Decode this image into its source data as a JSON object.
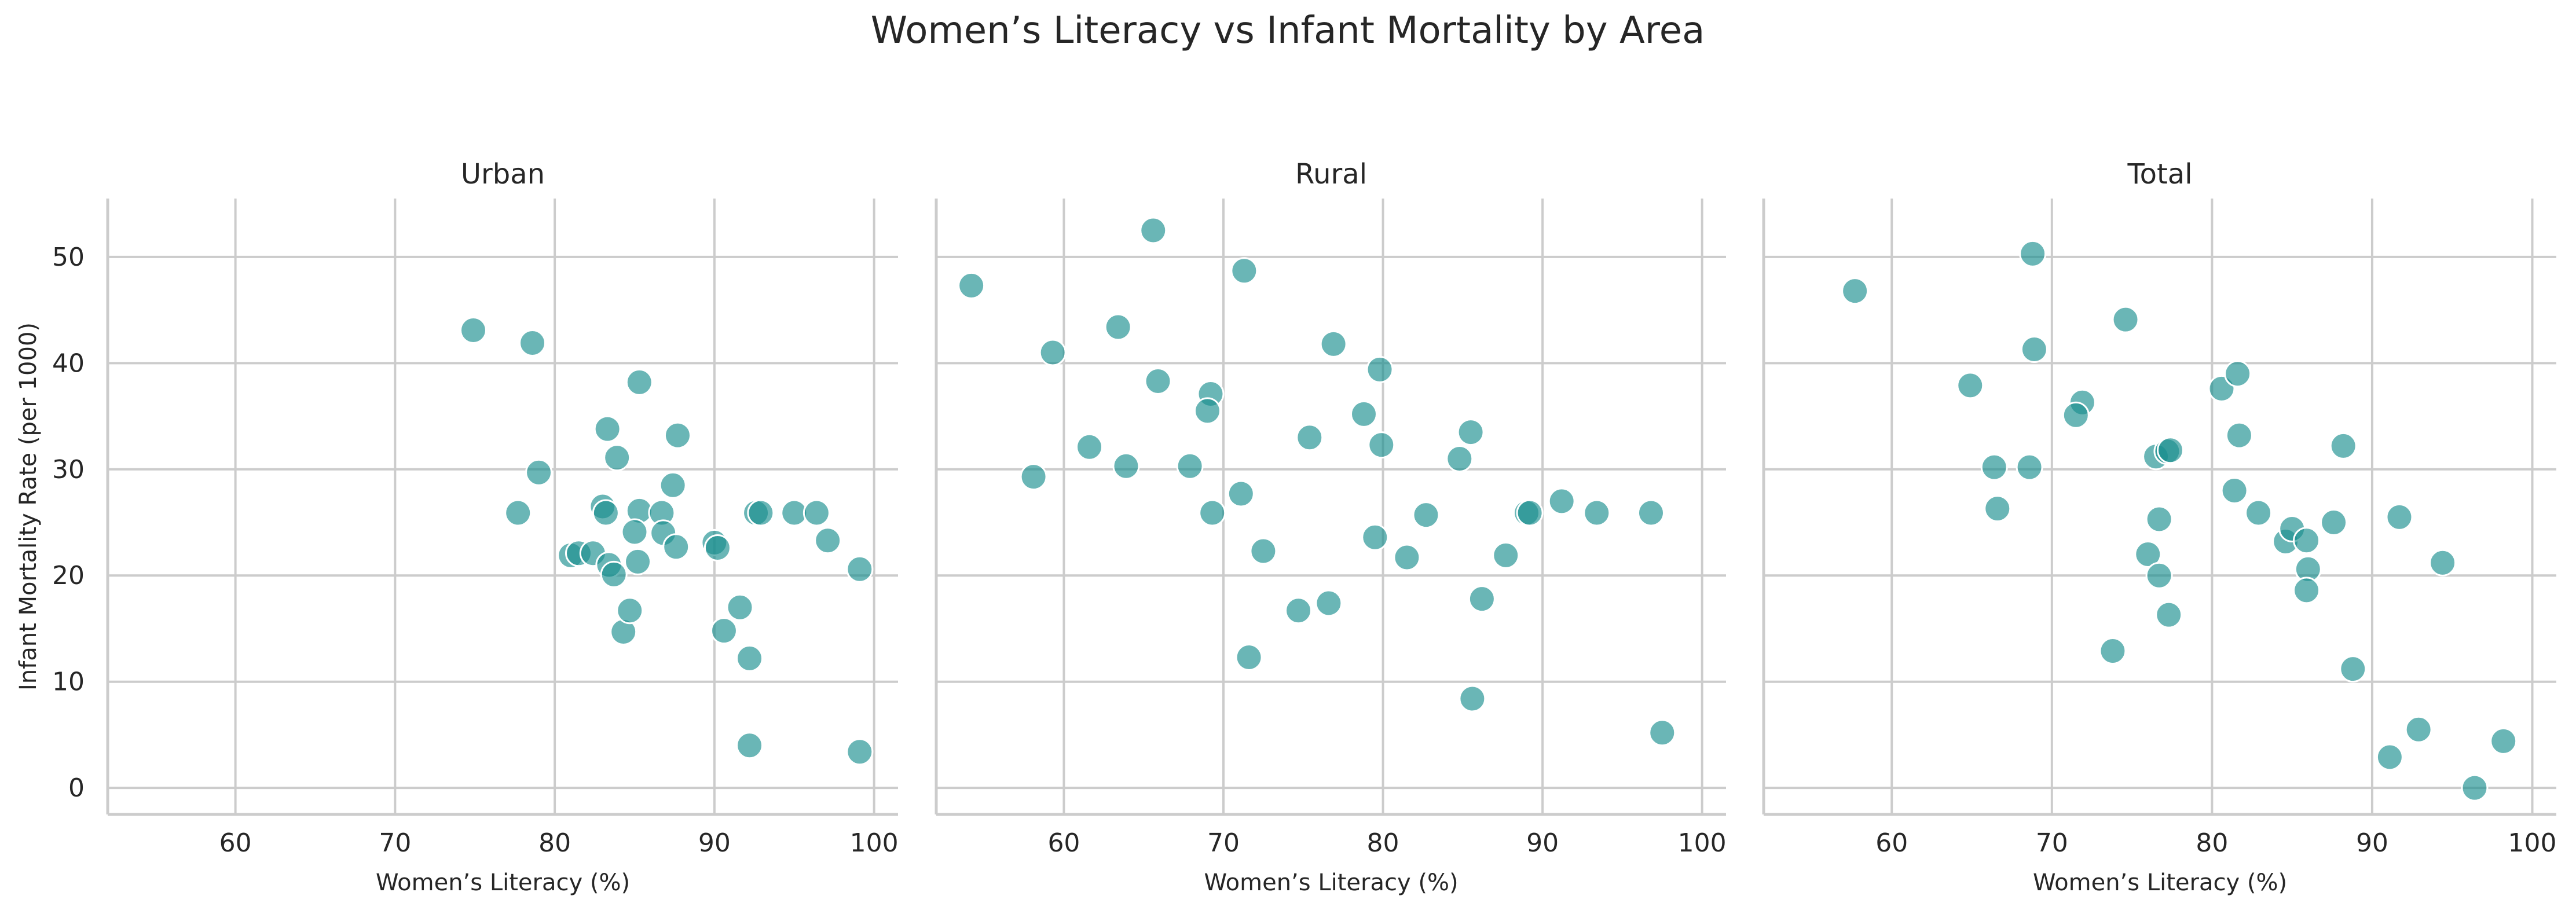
{
  "figure": {
    "title": "Women’s Literacy vs Infant Mortality by Area",
    "point_color": "#1a8f8f",
    "point_opacity": 0.65
  },
  "chart_data": [
    {
      "type": "scatter",
      "title": "Urban",
      "xlabel": "Women’s Literacy (%)",
      "ylabel": "Infant Mortality Rate (per 1000)",
      "xlim": [
        52,
        101.5
      ],
      "ylim": [
        -2.5,
        55.5
      ],
      "xticks": [
        60,
        70,
        80,
        90,
        100
      ],
      "yticks": [
        0,
        10,
        20,
        30,
        40,
        50
      ],
      "grid": true,
      "points": [
        {
          "x": 74.9,
          "y": 43.1
        },
        {
          "x": 78.6,
          "y": 41.9
        },
        {
          "x": 79.0,
          "y": 29.7
        },
        {
          "x": 77.7,
          "y": 25.9
        },
        {
          "x": 85.3,
          "y": 38.2
        },
        {
          "x": 83.3,
          "y": 33.8
        },
        {
          "x": 83.9,
          "y": 31.1
        },
        {
          "x": 87.7,
          "y": 33.2
        },
        {
          "x": 87.4,
          "y": 28.5
        },
        {
          "x": 83.0,
          "y": 26.5
        },
        {
          "x": 83.2,
          "y": 25.9
        },
        {
          "x": 85.3,
          "y": 26.1
        },
        {
          "x": 86.7,
          "y": 25.9
        },
        {
          "x": 85.0,
          "y": 24.1
        },
        {
          "x": 86.8,
          "y": 24.0
        },
        {
          "x": 87.6,
          "y": 22.7
        },
        {
          "x": 81.0,
          "y": 21.9
        },
        {
          "x": 81.5,
          "y": 22.1
        },
        {
          "x": 82.4,
          "y": 22.1
        },
        {
          "x": 83.4,
          "y": 21.0
        },
        {
          "x": 83.7,
          "y": 20.1
        },
        {
          "x": 85.2,
          "y": 21.3
        },
        {
          "x": 84.3,
          "y": 14.7
        },
        {
          "x": 84.7,
          "y": 16.7
        },
        {
          "x": 90.0,
          "y": 23.1
        },
        {
          "x": 90.2,
          "y": 22.6
        },
        {
          "x": 90.6,
          "y": 14.8
        },
        {
          "x": 91.6,
          "y": 17.0
        },
        {
          "x": 92.2,
          "y": 12.2
        },
        {
          "x": 92.2,
          "y": 4.0
        },
        {
          "x": 92.6,
          "y": 25.9
        },
        {
          "x": 92.9,
          "y": 25.9
        },
        {
          "x": 95.0,
          "y": 25.9
        },
        {
          "x": 96.4,
          "y": 25.9
        },
        {
          "x": 97.1,
          "y": 23.3
        },
        {
          "x": 99.1,
          "y": 20.6
        },
        {
          "x": 99.1,
          "y": 3.4
        }
      ]
    },
    {
      "type": "scatter",
      "title": "Rural",
      "xlabel": "Women’s Literacy (%)",
      "ylabel": "",
      "xlim": [
        52,
        101.5
      ],
      "ylim": [
        -2.5,
        55.5
      ],
      "xticks": [
        60,
        70,
        80,
        90,
        100
      ],
      "yticks": [
        0,
        10,
        20,
        30,
        40,
        50
      ],
      "grid": true,
      "points": [
        {
          "x": 54.2,
          "y": 47.3
        },
        {
          "x": 65.6,
          "y": 52.5
        },
        {
          "x": 71.3,
          "y": 48.7
        },
        {
          "x": 59.3,
          "y": 41.0
        },
        {
          "x": 63.4,
          "y": 43.4
        },
        {
          "x": 65.9,
          "y": 38.3
        },
        {
          "x": 69.2,
          "y": 37.1
        },
        {
          "x": 69.0,
          "y": 35.5
        },
        {
          "x": 61.6,
          "y": 32.1
        },
        {
          "x": 58.1,
          "y": 29.3
        },
        {
          "x": 63.9,
          "y": 30.3
        },
        {
          "x": 67.9,
          "y": 30.3
        },
        {
          "x": 69.3,
          "y": 25.9
        },
        {
          "x": 71.1,
          "y": 27.7
        },
        {
          "x": 72.5,
          "y": 22.3
        },
        {
          "x": 71.6,
          "y": 12.3
        },
        {
          "x": 76.9,
          "y": 41.8
        },
        {
          "x": 79.8,
          "y": 39.4
        },
        {
          "x": 78.8,
          "y": 35.2
        },
        {
          "x": 75.4,
          "y": 33.0
        },
        {
          "x": 79.9,
          "y": 32.3
        },
        {
          "x": 79.5,
          "y": 23.6
        },
        {
          "x": 74.7,
          "y": 16.7
        },
        {
          "x": 76.6,
          "y": 17.4
        },
        {
          "x": 81.5,
          "y": 21.7
        },
        {
          "x": 82.7,
          "y": 25.7
        },
        {
          "x": 84.8,
          "y": 31.0
        },
        {
          "x": 85.5,
          "y": 33.5
        },
        {
          "x": 86.2,
          "y": 17.8
        },
        {
          "x": 85.6,
          "y": 8.4
        },
        {
          "x": 87.7,
          "y": 21.9
        },
        {
          "x": 89.0,
          "y": 25.9
        },
        {
          "x": 89.2,
          "y": 25.9
        },
        {
          "x": 91.2,
          "y": 27.0
        },
        {
          "x": 93.4,
          "y": 25.9
        },
        {
          "x": 96.8,
          "y": 25.9
        },
        {
          "x": 97.5,
          "y": 5.2
        }
      ]
    },
    {
      "type": "scatter",
      "title": "Total",
      "xlabel": "Women’s Literacy (%)",
      "ylabel": "",
      "xlim": [
        52,
        101.5
      ],
      "ylim": [
        -2.5,
        55.5
      ],
      "xticks": [
        60,
        70,
        80,
        90,
        100
      ],
      "yticks": [
        0,
        10,
        20,
        30,
        40,
        50
      ],
      "grid": true,
      "points": [
        {
          "x": 57.7,
          "y": 46.8
        },
        {
          "x": 68.8,
          "y": 50.3
        },
        {
          "x": 74.6,
          "y": 44.1
        },
        {
          "x": 68.9,
          "y": 41.3
        },
        {
          "x": 64.9,
          "y": 37.9
        },
        {
          "x": 71.9,
          "y": 36.3
        },
        {
          "x": 71.5,
          "y": 35.1
        },
        {
          "x": 66.4,
          "y": 30.2
        },
        {
          "x": 68.6,
          "y": 30.2
        },
        {
          "x": 66.6,
          "y": 26.3
        },
        {
          "x": 76.5,
          "y": 31.2
        },
        {
          "x": 77.2,
          "y": 31.7
        },
        {
          "x": 77.4,
          "y": 31.8
        },
        {
          "x": 76.7,
          "y": 25.3
        },
        {
          "x": 76.0,
          "y": 22.0
        },
        {
          "x": 76.7,
          "y": 20.0
        },
        {
          "x": 77.3,
          "y": 16.3
        },
        {
          "x": 73.8,
          "y": 12.9
        },
        {
          "x": 80.6,
          "y": 37.6
        },
        {
          "x": 81.6,
          "y": 39.0
        },
        {
          "x": 81.7,
          "y": 33.2
        },
        {
          "x": 81.4,
          "y": 28.0
        },
        {
          "x": 82.9,
          "y": 25.9
        },
        {
          "x": 84.6,
          "y": 23.2
        },
        {
          "x": 85.0,
          "y": 24.4
        },
        {
          "x": 85.9,
          "y": 23.3
        },
        {
          "x": 86.0,
          "y": 20.6
        },
        {
          "x": 85.9,
          "y": 18.6
        },
        {
          "x": 87.6,
          "y": 25.0
        },
        {
          "x": 88.2,
          "y": 32.2
        },
        {
          "x": 88.8,
          "y": 11.2
        },
        {
          "x": 91.7,
          "y": 25.5
        },
        {
          "x": 94.4,
          "y": 21.2
        },
        {
          "x": 91.1,
          "y": 2.9
        },
        {
          "x": 92.9,
          "y": 5.5
        },
        {
          "x": 96.4,
          "y": 0.0
        },
        {
          "x": 98.2,
          "y": 4.4
        }
      ]
    }
  ]
}
